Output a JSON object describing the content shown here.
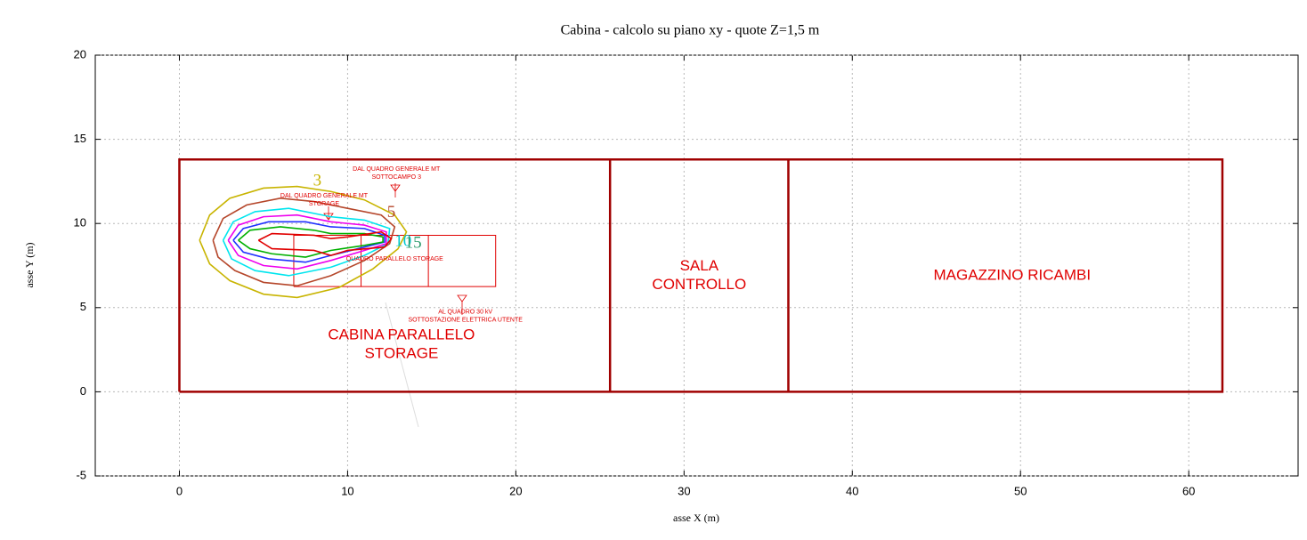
{
  "chart_data": {
    "type": "contour",
    "title": "Cabina  -  calcolo su piano xy  -  quote Z=1,5 m",
    "x_label": "asse X (m)",
    "y_label": "asse Y (m)",
    "xlim": [
      -5,
      66.5
    ],
    "ylim": [
      -5,
      20
    ],
    "xticks": [
      0,
      10,
      20,
      30,
      40,
      50,
      60
    ],
    "yticks": [
      -5,
      0,
      5,
      10,
      15,
      20
    ],
    "grid": true,
    "series": [
      {
        "color": "#c8b400",
        "x": [
          1.2,
          1.8,
          3,
          5,
          7,
          9,
          11,
          12.8,
          13.5,
          13,
          11.5,
          9.5,
          7,
          5,
          3,
          1.8,
          1.2
        ],
        "y": [
          9,
          10.5,
          11.5,
          12.1,
          12.2,
          11.9,
          11.4,
          10.5,
          9.5,
          8.5,
          7.3,
          6.2,
          5.6,
          5.8,
          6.6,
          7.6,
          9
        ]
      },
      {
        "color": "#b5462a",
        "x": [
          2,
          2.6,
          4,
          6,
          8,
          10,
          12,
          12.8,
          12.5,
          11,
          9,
          7,
          5,
          3.3,
          2.3,
          2
        ],
        "y": [
          9,
          10.3,
          11.1,
          11.5,
          11.3,
          10.9,
          10.5,
          9.8,
          8.8,
          7.8,
          6.9,
          6.3,
          6.5,
          7.2,
          8,
          9
        ]
      },
      {
        "color": "#00e5ee",
        "x": [
          2.6,
          3.2,
          4.5,
          6.5,
          9,
          11,
          12.5,
          12.4,
          11,
          9,
          6.5,
          4.5,
          3.1,
          2.6
        ],
        "y": [
          9,
          10.1,
          10.7,
          10.9,
          10.4,
          10.2,
          9.7,
          8.8,
          8.1,
          7.4,
          6.9,
          7.2,
          7.9,
          9
        ]
      },
      {
        "color": "#ee00ee",
        "x": [
          2.9,
          3.5,
          5,
          7,
          9,
          11,
          12.3,
          12.3,
          11,
          9,
          7,
          5,
          3.5,
          2.9
        ],
        "y": [
          9,
          9.9,
          10.4,
          10.5,
          10.1,
          9.9,
          9.5,
          8.8,
          8.4,
          7.8,
          7.3,
          7.5,
          8.1,
          9
        ]
      },
      {
        "color": "#2030ff",
        "x": [
          3.2,
          3.8,
          5.3,
          7.5,
          9,
          11,
          12.2,
          12.2,
          11,
          9,
          7.5,
          5.3,
          3.8,
          3.2
        ],
        "y": [
          9,
          9.7,
          10.1,
          10.1,
          9.8,
          9.7,
          9.3,
          8.9,
          8.6,
          8.1,
          7.7,
          7.9,
          8.3,
          9
        ]
      },
      {
        "color": "#00b000",
        "x": [
          3.5,
          4.2,
          6,
          8,
          9,
          11,
          12.1,
          12.1,
          11,
          9,
          7.5,
          5.5,
          4.2,
          3.5
        ],
        "y": [
          9,
          9.6,
          9.8,
          9.6,
          9.4,
          9.4,
          9.2,
          8.9,
          8.7,
          8.4,
          8,
          8.2,
          8.5,
          9
        ]
      },
      {
        "color": "#e00000",
        "x": [
          4.7,
          5.5,
          8,
          9,
          10,
          12,
          12.6,
          12.2,
          10,
          9,
          8,
          5.5,
          4.7
        ],
        "y": [
          9,
          9.4,
          9.3,
          9.1,
          9.2,
          9.5,
          9.1,
          8.6,
          8.4,
          8.1,
          8.4,
          8.5,
          9
        ]
      }
    ],
    "outlines": [
      {
        "color": "#a00000",
        "x": [
          0,
          62,
          62,
          0,
          0
        ],
        "y": [
          0,
          0,
          13.8,
          13.8,
          0
        ]
      },
      {
        "color": "#a00000",
        "x": [
          25.6,
          25.6
        ],
        "y": [
          0,
          13.8
        ]
      },
      {
        "color": "#a00000",
        "x": [
          36.2,
          36.2
        ],
        "y": [
          0,
          13.8
        ]
      },
      {
        "color": "#e00000",
        "x": [
          6.8,
          18.8,
          18.8,
          6.8,
          6.8
        ],
        "y": [
          6.25,
          6.25,
          9.3,
          9.3,
          6.25
        ]
      },
      {
        "color": "#e00000",
        "x": [
          10.8,
          10.8
        ],
        "y": [
          6.25,
          9.3
        ]
      },
      {
        "color": "#e00000",
        "x": [
          14.8,
          14.8
        ],
        "y": [
          6.25,
          9.3
        ]
      }
    ],
    "contour_labels": [
      {
        "text": "3",
        "color": "#c8b400",
        "x": 8.2,
        "y": 12.5
      },
      {
        "text": "5",
        "color": "#b5462a",
        "x": 12.6,
        "y": 10.6
      },
      {
        "text": "10",
        "color": "#00c8d0",
        "x": 13.3,
        "y": 8.9
      },
      {
        "text": "15",
        "color": "#2a9a6a",
        "x": 13.9,
        "y": 8.8
      }
    ],
    "room_labels": [
      {
        "lines": [
          "CABINA PARALLELO",
          "STORAGE"
        ],
        "x": 13.2,
        "y": 2.8
      },
      {
        "lines": [
          "SALA",
          "CONTROLLO"
        ],
        "x": 30.9,
        "y": 6.9
      },
      {
        "lines": [
          "MAGAZZINO RICAMBI"
        ],
        "x": 49.5,
        "y": 6.9
      }
    ],
    "notes": [
      {
        "lines": [
          "DAL QUADRO GENERALE MT",
          "SOTTOCAMPO 3"
        ],
        "x": 12.9,
        "y": 13.0
      },
      {
        "lines": [
          "DAL QUADRO GENERALE MT",
          "STORAGE"
        ],
        "x": 8.6,
        "y": 11.4
      },
      {
        "lines": [
          "QUADRO PARALLELO STORAGE"
        ],
        "x": 12.8,
        "y": 7.9
      },
      {
        "lines": [
          "AL QUADRO 30 kV",
          "SOTTOSTAZIONE ELETTRICA UTENTE"
        ],
        "x": 17,
        "y": 4.5
      }
    ]
  }
}
